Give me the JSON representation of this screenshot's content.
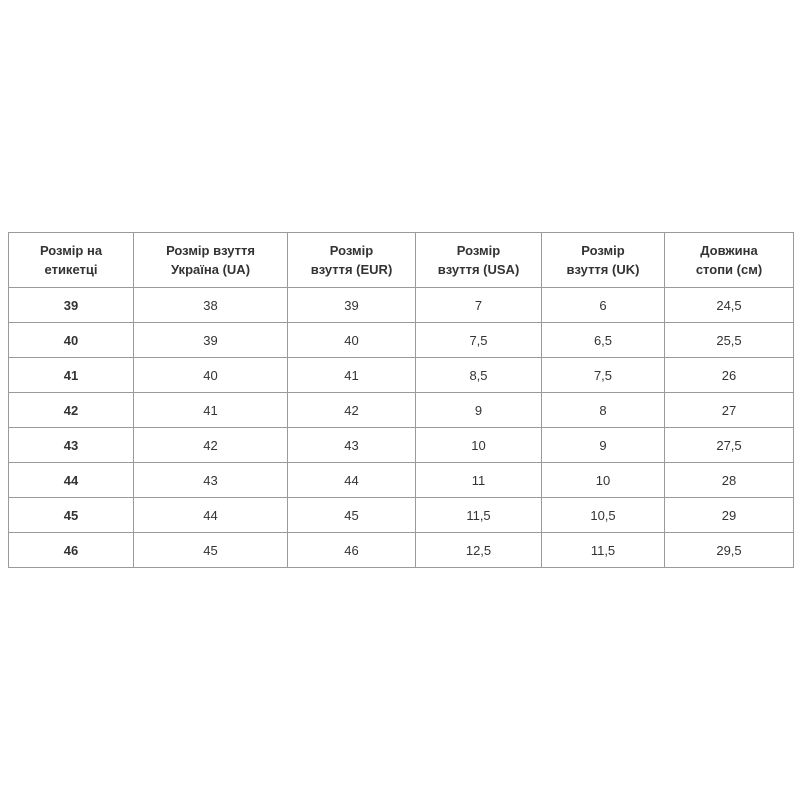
{
  "table": {
    "header": [
      [
        "Розмір на",
        "етикетці"
      ],
      [
        "Розмір взуття",
        "Україна (UA)"
      ],
      [
        "Розмір",
        "взуття (EUR)"
      ],
      [
        "Розмір",
        "взуття (USA)"
      ],
      [
        "Розмір",
        "взуття (UK)"
      ],
      [
        "Довжина",
        "стопи (см)"
      ]
    ],
    "rows": [
      [
        "39",
        "38",
        "39",
        "7",
        "6",
        "24,5"
      ],
      [
        "40",
        "39",
        "40",
        "7,5",
        "6,5",
        "25,5"
      ],
      [
        "41",
        "40",
        "41",
        "8,5",
        "7,5",
        "26"
      ],
      [
        "42",
        "41",
        "42",
        "9",
        "8",
        "27"
      ],
      [
        "43",
        "42",
        "43",
        "10",
        "9",
        "27,5"
      ],
      [
        "44",
        "43",
        "44",
        "11",
        "10",
        "28"
      ],
      [
        "45",
        "44",
        "45",
        "11,5",
        "10,5",
        "29"
      ],
      [
        "46",
        "45",
        "46",
        "12,5",
        "11,5",
        "29,5"
      ]
    ]
  }
}
